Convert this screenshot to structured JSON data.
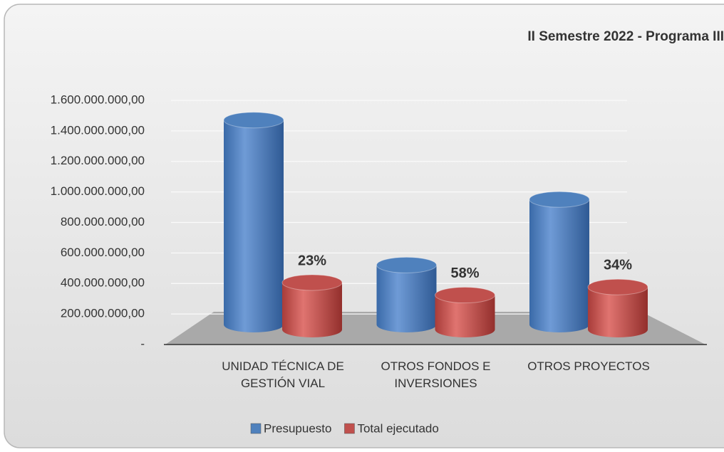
{
  "chart_data": {
    "type": "bar3d",
    "title": "II Semestre 2022 - Programa III",
    "categories": [
      "UNIDAD TÉCNICA DE\nGESTIÓN VIAL",
      "OTROS FONDOS E\nINVERSIONES",
      "OTROS PROYECTOS"
    ],
    "series": [
      {
        "name": "Presupuesto",
        "color": "#4f81bd",
        "values": [
          1340000000,
          390000000,
          820000000
        ]
      },
      {
        "name": "Total ejecutado",
        "color": "#c0504d",
        "values": [
          308000000,
          226000000,
          279000000
        ]
      }
    ],
    "annotations": [
      "23%",
      "58%",
      "34%"
    ],
    "ylim": [
      0,
      1600000000
    ],
    "yticks": [
      {
        "value": 0,
        "label": "-"
      },
      {
        "value": 200000000,
        "label": "200.000.000,00"
      },
      {
        "value": 400000000,
        "label": "400.000.000,00"
      },
      {
        "value": 600000000,
        "label": "600.000.000,00"
      },
      {
        "value": 800000000,
        "label": "800.000.000,00"
      },
      {
        "value": 1000000000,
        "label": "1.000.000.000,00"
      },
      {
        "value": 1200000000,
        "label": "1.200.000.000,00"
      },
      {
        "value": 1400000000,
        "label": "1.400.000.000,00"
      },
      {
        "value": 1600000000,
        "label": "1.600.000.000,00"
      }
    ],
    "grid": true,
    "legend": "bottom"
  }
}
